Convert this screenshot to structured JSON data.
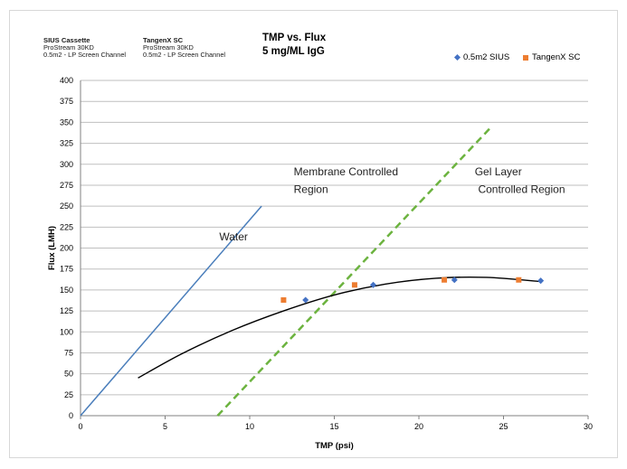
{
  "info": {
    "siu": {
      "head": "SIUS Cassette",
      "l1": "ProStream 30KD",
      "l2": "0.5m2 - LP Screen Channel"
    },
    "tangenx": {
      "head": "TangenX SC",
      "l1": "ProStream 30KD",
      "l2": "0.5m2 - LP Screen Channel"
    }
  },
  "colors": {
    "siu": "#4472c4",
    "tangenx": "#ed7d31",
    "water": "#4a7ebb",
    "divider": "#6cb33f",
    "fit": "#000000",
    "grid": "#bfbfbf"
  },
  "chart_data": {
    "type": "scatter",
    "title": "TMP vs. Flux",
    "subtitle": "5 mg/ML IgG",
    "xlabel": "TMP (psi)",
    "ylabel": "Flux (LMH)",
    "xlim": [
      0,
      30
    ],
    "ylim": [
      0,
      400
    ],
    "xticks": [
      0,
      5,
      10,
      15,
      20,
      25,
      30
    ],
    "yticks": [
      0,
      25,
      50,
      75,
      100,
      125,
      150,
      175,
      200,
      225,
      250,
      275,
      300,
      325,
      350,
      375,
      400
    ],
    "grid": "horizontal",
    "legend_position": "top-right",
    "series": [
      {
        "name": "0.5m2 SIUS",
        "marker": "diamond",
        "x": [
          13.3,
          17.3,
          22.1,
          27.2
        ],
        "y": [
          138,
          156,
          162,
          161
        ]
      },
      {
        "name": "TangenX SC",
        "marker": "square",
        "x": [
          12,
          16.2,
          21.5,
          25.9
        ],
        "y": [
          138,
          156,
          162,
          162
        ]
      }
    ],
    "lines": [
      {
        "id": "water",
        "style": "solid",
        "x": [
          0,
          10.7
        ],
        "y": [
          0,
          250
        ]
      },
      {
        "id": "divider",
        "style": "dashed",
        "x": [
          8.1,
          24.3
        ],
        "y": [
          0,
          345
        ]
      }
    ],
    "fit_curve": {
      "x": [
        3.4,
        6,
        9,
        12,
        15,
        18,
        21,
        24,
        27.2
      ],
      "y": [
        45,
        74,
        102,
        125,
        144,
        157,
        164,
        165,
        160
      ]
    },
    "annotations": [
      {
        "id": "water",
        "text": "Water",
        "x": 8.2,
        "y": 209
      },
      {
        "id": "membrane1",
        "text": "Membrane Controlled",
        "x": 12.6,
        "y": 287
      },
      {
        "id": "membrane2",
        "text": "Region",
        "x": 12.6,
        "y": 266
      },
      {
        "id": "gel1",
        "text": "Gel Layer",
        "x": 23.3,
        "y": 287
      },
      {
        "id": "gel2",
        "text": "Controlled Region",
        "x": 23.5,
        "y": 266
      }
    ]
  }
}
